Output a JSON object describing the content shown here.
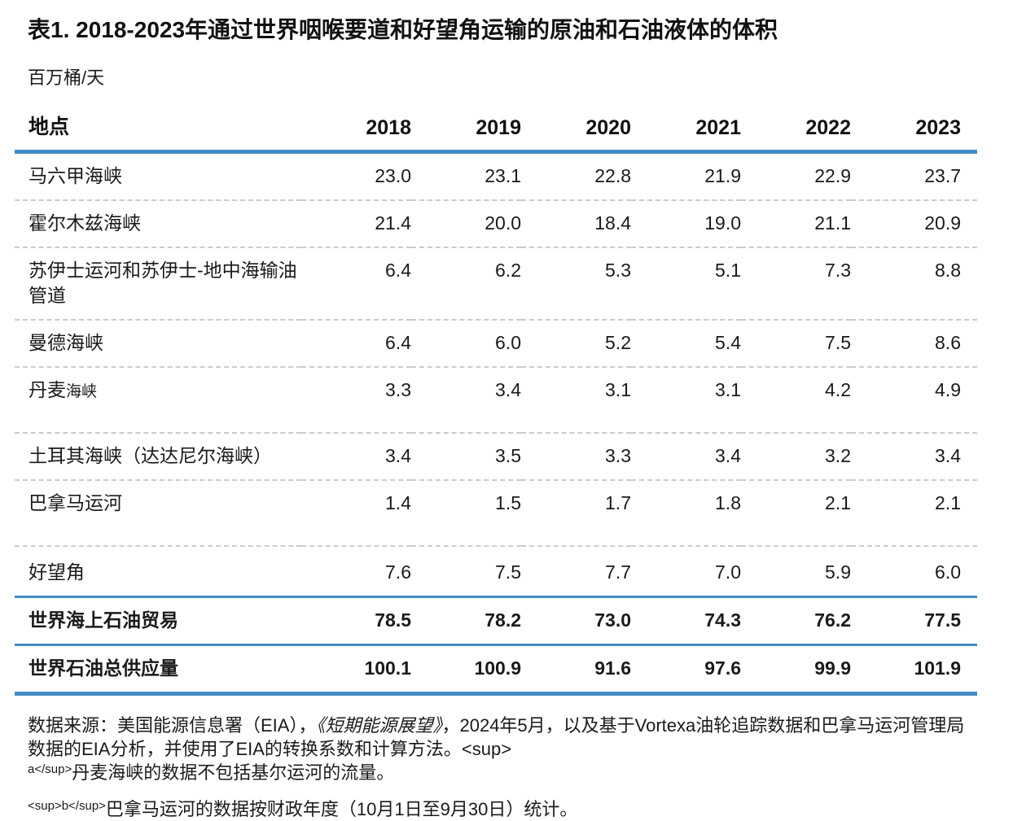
{
  "page": {
    "title": "表1. 2018-2023年通过世界咽喉要道和好望角运输的原油和石油液体的体积",
    "unit_label": "百万桶/天"
  },
  "table": {
    "location_header": "地点",
    "year_headers": [
      "2018",
      "2019",
      "2020",
      "2021",
      "2022",
      "2023"
    ],
    "rows": [
      {
        "label": "马六甲海峡",
        "values": [
          "23.0",
          "23.1",
          "22.8",
          "21.9",
          "22.9",
          "23.7"
        ]
      },
      {
        "label": "霍尔木兹海峡",
        "values": [
          "21.4",
          "20.0",
          "18.4",
          "19.0",
          "21.1",
          "20.9"
        ]
      },
      {
        "label": "苏伊士运河和苏伊士-地中海输油管道",
        "values": [
          "6.4",
          "6.2",
          "5.3",
          "5.1",
          "7.3",
          "8.8"
        ]
      },
      {
        "label": "曼德海峡",
        "values": [
          "6.4",
          "6.0",
          "5.2",
          "5.4",
          "7.5",
          "8.6"
        ]
      },
      {
        "label": "丹麦",
        "label_small": "海峡",
        "values": [
          "3.3",
          "3.4",
          "3.1",
          "3.1",
          "4.2",
          "4.9"
        ]
      },
      {
        "label": "土耳其海峡（达达尼尔海峡）",
        "values": [
          "3.4",
          "3.5",
          "3.3",
          "3.4",
          "3.2",
          "3.4"
        ]
      },
      {
        "label": "巴拿马运河",
        "values": [
          "1.4",
          "1.5",
          "1.7",
          "1.8",
          "2.1",
          "2.1"
        ]
      },
      {
        "label": "好望角",
        "values": [
          "7.6",
          "7.5",
          "7.7",
          "7.0",
          "5.9",
          "6.0"
        ]
      }
    ],
    "summary_rows": [
      {
        "label": "世界海上石油贸易",
        "values": [
          "78.5",
          "78.2",
          "73.0",
          "74.3",
          "76.2",
          "77.5"
        ]
      },
      {
        "label": "世界石油总供应量",
        "values": [
          "100.1",
          "100.9",
          "91.6",
          "97.6",
          "99.9",
          "101.9"
        ]
      }
    ]
  },
  "footnotes": {
    "source_prefix": "数据来源：美国能源信息署（EIA），",
    "source_publication": "《短期能源展望》",
    "source_suffix": "，2024年5月，以及基于Vortexa油轮追踪数据和巴拿马运河管理局数据的EIA分析，并使用了EIA的转换系数和计算方法。",
    "stray_sup_open": "<sup>",
    "note_a_marker": "a</sup>",
    "note_a_text": "丹麦海峡的数据不包括基尔运河的流量。",
    "note_b_marker": "<sup>b</sup>",
    "note_b_text": "巴拿马运河的数据按财政年度（10月1日至9月30日）统计。"
  },
  "colors": {
    "accent_blue": "#428dc5",
    "divider_gray": "#cccccc"
  }
}
